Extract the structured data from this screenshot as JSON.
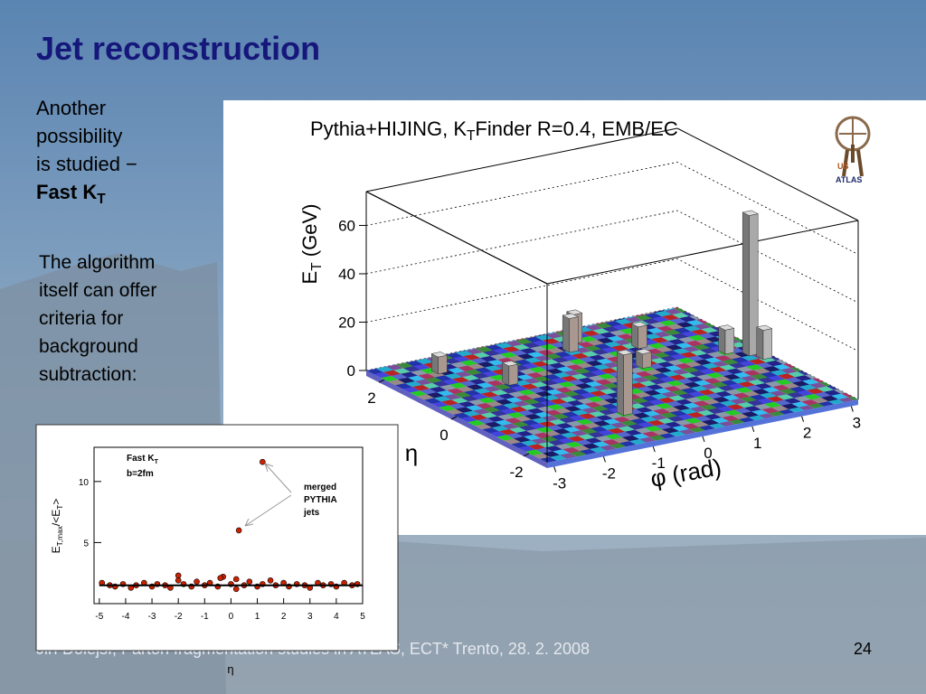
{
  "title": "Jet reconstruction",
  "intro": {
    "lines": [
      "Another",
      "possibility",
      "is studied −"
    ],
    "bold": "Fast K",
    "bold_sub": "T"
  },
  "body_lines": [
    "The algorithm",
    "itself can offer",
    "criteria for",
    "background",
    "subtraction:"
  ],
  "footer": "Jiří Dolejší, Parton fragmentation studies in ATLAS, ECT* Trento, 28. 2. 2008",
  "page_number": "24",
  "logo": {
    "top": "US",
    "bottom": "ATLAS"
  },
  "chart_data": [
    {
      "type": "lego",
      "title_parts": [
        "Pythia+HIJING, K",
        "T",
        "Finder R=0.4, EMB/EC"
      ],
      "zlabel_parts": [
        "E",
        "T",
        " (GeV)"
      ],
      "xlabel": "φ (rad)",
      "ylabel": "η",
      "xlim": [
        -3.14,
        3.14
      ],
      "ylim": [
        -2.5,
        2.5
      ],
      "zlim": [
        0,
        74
      ],
      "xticks": [
        -3,
        -2,
        -1,
        0,
        1,
        2,
        3
      ],
      "yticks": [
        -2,
        0,
        2
      ],
      "zticks": [
        0,
        20,
        40,
        60
      ],
      "grid": true,
      "towers": {
        "x": [
          2.8,
          -0.7,
          0.3,
          0.6,
          2.5,
          -1.5,
          1.4,
          2.9,
          -2.2,
          0.9
        ],
        "y": [
          0.05,
          -1.27,
          1.6,
          1.9,
          0.3,
          0.8,
          1.2,
          -0.2,
          1.8,
          0.4
        ],
        "values": [
          58,
          25,
          14,
          12,
          10,
          8,
          9,
          12,
          7,
          6
        ],
        "colors": [
          "#a9a9a9",
          "#a89890",
          "#a89890",
          "#a89890",
          "#b0b0b0",
          "#a89890",
          "#a89890",
          "#b8b8b8",
          "#a89890",
          "#a89890"
        ]
      }
    },
    {
      "type": "scatter",
      "xlabel": "η",
      "ylabel_parts": [
        "E",
        "T,max",
        "/<E",
        "T",
        ">"
      ],
      "label_parts": [
        "Fast K",
        "T"
      ],
      "label2": "b=2fm",
      "annotation": [
        "merged",
        "PYTHIA",
        "jets"
      ],
      "xlim": [
        -5.2,
        5
      ],
      "ylim": [
        0,
        12.8
      ],
      "xticks": [
        -5,
        -4,
        -3,
        -2,
        -1,
        0,
        1,
        2,
        3,
        4,
        5
      ],
      "yticks": [
        5,
        10
      ],
      "series": [
        {
          "color": "#cc2200",
          "x": [
            -4.9,
            -4.6,
            -4.4,
            -4.1,
            -3.8,
            -3.6,
            -3.3,
            -3.0,
            -2.8,
            -2.5,
            -2.3,
            -2.0,
            -1.8,
            -1.5,
            -1.3,
            -1.0,
            -0.8,
            -0.5,
            -0.3,
            0.0,
            0.2,
            0.5,
            0.7,
            1.0,
            1.2,
            1.5,
            1.7,
            2.0,
            2.2,
            2.5,
            2.8,
            3.0,
            3.3,
            3.5,
            3.8,
            4.0,
            4.3,
            4.6,
            4.8,
            -2.0,
            -0.4,
            0.2,
            1.2,
            0.3
          ],
          "values": [
            1.7,
            1.5,
            1.4,
            1.6,
            1.3,
            1.5,
            1.7,
            1.4,
            1.6,
            1.5,
            1.3,
            2.3,
            1.6,
            1.4,
            1.8,
            1.5,
            1.7,
            1.4,
            2.2,
            1.6,
            2.0,
            1.5,
            1.8,
            1.4,
            1.6,
            1.9,
            1.5,
            1.7,
            1.4,
            1.6,
            1.5,
            1.3,
            1.7,
            1.5,
            1.6,
            1.4,
            1.7,
            1.5,
            1.6,
            1.9,
            2.1,
            1.2,
            11.6,
            6.0
          ]
        },
        {
          "color": "#000000",
          "line": true,
          "x": [
            -5,
            5
          ],
          "values": [
            1.5,
            1.5
          ]
        }
      ]
    }
  ]
}
